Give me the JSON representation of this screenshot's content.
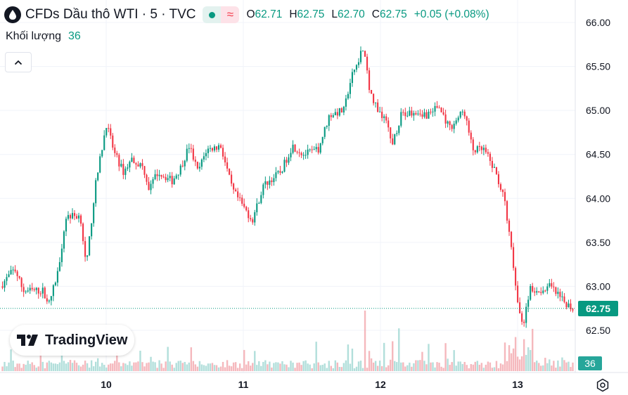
{
  "header": {
    "symbol_icon": "oil-drop-icon",
    "title": "CFDs Dầu thô WTI · 5 · TVC",
    "market_status_icon": "market-open-dot-icon",
    "delay_icon": "data-delay-wave-icon",
    "delay_glyph": "≈",
    "ohlc": {
      "o_label": "O",
      "o_value": "62.71",
      "h_label": "H",
      "h_value": "62.75",
      "l_label": "L",
      "l_value": "62.70",
      "c_label": "C",
      "c_value": "62.75",
      "change": "+0.05 (+0.08%)"
    }
  },
  "volume_legend": {
    "label": "Khối lượng",
    "value": "36"
  },
  "collapse_icon": "chevron-up-icon",
  "logo": {
    "icon": "tradingview-logo-icon",
    "text": "TradingView"
  },
  "price_scale": {
    "labels": [
      "66.00",
      "65.50",
      "65.00",
      "64.50",
      "64.00",
      "63.50",
      "63.00",
      "62.50"
    ],
    "last_price": "62.75",
    "volume_value": "36"
  },
  "time_scale": {
    "labels": [
      "10",
      "11",
      "12",
      "13"
    ]
  },
  "settings_icon": "gear-icon",
  "colors": {
    "up": "#089981",
    "down": "#f23645",
    "grid": "#f0f3fa",
    "vol_up": "#b2dfdb",
    "vol_down": "#f5b8bd"
  },
  "chart_data": {
    "type": "candlestick",
    "timeframe": "5",
    "ylim": [
      62.3,
      66.1
    ],
    "yticks": [
      66.0,
      65.5,
      65.0,
      64.5,
      64.0,
      63.5,
      63.0,
      62.5
    ],
    "x_day_labels": [
      "10",
      "11",
      "12",
      "13"
    ],
    "approx_close_path": [
      [
        0,
        63.0
      ],
      [
        0.025,
        63.2
      ],
      [
        0.04,
        62.95
      ],
      [
        0.075,
        62.95
      ],
      [
        0.085,
        62.8
      ],
      [
        0.1,
        63.15
      ],
      [
        0.115,
        63.8
      ],
      [
        0.14,
        63.8
      ],
      [
        0.15,
        63.2
      ],
      [
        0.165,
        64.1
      ],
      [
        0.185,
        64.85
      ],
      [
        0.2,
        64.5
      ],
      [
        0.215,
        64.3
      ],
      [
        0.23,
        64.45
      ],
      [
        0.25,
        64.35
      ],
      [
        0.26,
        64.1
      ],
      [
        0.275,
        64.3
      ],
      [
        0.3,
        64.2
      ],
      [
        0.315,
        64.35
      ],
      [
        0.33,
        64.6
      ],
      [
        0.345,
        64.3
      ],
      [
        0.36,
        64.55
      ],
      [
        0.385,
        64.6
      ],
      [
        0.405,
        64.1
      ],
      [
        0.425,
        63.9
      ],
      [
        0.44,
        63.75
      ],
      [
        0.46,
        64.15
      ],
      [
        0.49,
        64.3
      ],
      [
        0.51,
        64.6
      ],
      [
        0.53,
        64.5
      ],
      [
        0.555,
        64.55
      ],
      [
        0.575,
        64.95
      ],
      [
        0.6,
        65.0
      ],
      [
        0.615,
        65.4
      ],
      [
        0.635,
        65.75
      ],
      [
        0.645,
        65.2
      ],
      [
        0.66,
        65.0
      ],
      [
        0.675,
        64.9
      ],
      [
        0.685,
        64.6
      ],
      [
        0.7,
        64.95
      ],
      [
        0.725,
        65.0
      ],
      [
        0.745,
        64.95
      ],
      [
        0.765,
        65.05
      ],
      [
        0.785,
        64.8
      ],
      [
        0.81,
        65.0
      ],
      [
        0.825,
        64.55
      ],
      [
        0.845,
        64.55
      ],
      [
        0.865,
        64.3
      ],
      [
        0.88,
        64.0
      ],
      [
        0.895,
        63.3
      ],
      [
        0.905,
        62.7
      ],
      [
        0.915,
        62.6
      ],
      [
        0.925,
        63.0
      ],
      [
        0.94,
        62.95
      ],
      [
        0.96,
        63.0
      ],
      [
        0.98,
        62.85
      ],
      [
        1.0,
        62.75
      ]
    ],
    "last_volume": 36
  }
}
